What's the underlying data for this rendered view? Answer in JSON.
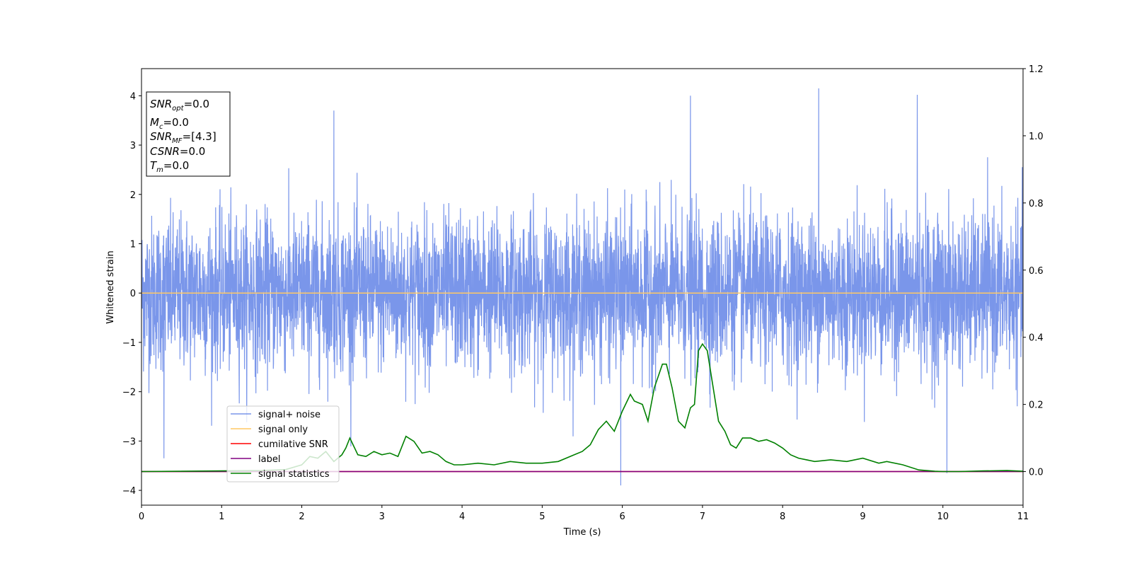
{
  "chart_data": {
    "type": "line",
    "xlabel": "Time (s)",
    "ylabel": "Whitened strain",
    "xlim": [
      0,
      11
    ],
    "ylim": [
      -4.3,
      4.55
    ],
    "y2lim": [
      -0.1,
      1.2
    ],
    "x_ticks": [
      "0",
      "1",
      "2",
      "3",
      "4",
      "5",
      "6",
      "7",
      "8",
      "9",
      "10",
      "11"
    ],
    "y_ticks": [
      "−4",
      "−3",
      "−2",
      "−1",
      "0",
      "1",
      "2",
      "3",
      "4"
    ],
    "y2_ticks": [
      "0.0",
      "0.2",
      "0.4",
      "0.6",
      "0.8",
      "1.0",
      "1.2"
    ],
    "legend_position": "lower-left",
    "info_box": {
      "line1": {
        "main": "SNR",
        "sub": "opt",
        "rest": "=0.0"
      },
      "line2": {
        "main": "M",
        "sub": "c",
        "rest": "=0.0"
      },
      "line3": {
        "main": "SNR",
        "sub": "MF",
        "rest": "=[4.3]"
      },
      "line4": {
        "main": "CSNR",
        "sub": "",
        "rest": "=0.0"
      },
      "line5": {
        "main": "T",
        "sub": "m",
        "rest": "=0.0"
      }
    },
    "series": [
      {
        "name": "signal+ noise",
        "color": "#4169e1",
        "axis": "left",
        "band": {
          "typical_min": -1.7,
          "typical_max": 1.7,
          "peak_max": 4.15,
          "peak_min": -3.9
        },
        "notable_spikes": [
          [
            0.28,
            -3.35
          ],
          [
            2.4,
            3.7
          ],
          [
            5.98,
            -3.9
          ],
          [
            6.85,
            4.0
          ],
          [
            8.45,
            4.15
          ],
          [
            9.68,
            4.02
          ],
          [
            10.05,
            -3.65
          ]
        ]
      },
      {
        "name": "signal only",
        "color": "#ffc864",
        "axis": "left",
        "x": [
          0,
          11
        ],
        "y": [
          0,
          0
        ]
      },
      {
        "name": "cumilative SNR",
        "color": "#ff0000",
        "axis": "right",
        "x": [
          0,
          11
        ],
        "y": [
          0,
          0
        ]
      },
      {
        "name": "label",
        "color": "#800080",
        "axis": "right",
        "x": [
          0,
          11
        ],
        "y": [
          0,
          0
        ]
      },
      {
        "name": "signal statistics",
        "color": "#008000",
        "axis": "right",
        "x": [
          0,
          0.5,
          1.0,
          1.5,
          1.8,
          2.0,
          2.1,
          2.2,
          2.3,
          2.4,
          2.5,
          2.55,
          2.6,
          2.7,
          2.8,
          2.9,
          3.0,
          3.1,
          3.2,
          3.3,
          3.4,
          3.5,
          3.6,
          3.7,
          3.8,
          3.9,
          4.0,
          4.2,
          4.4,
          4.6,
          4.8,
          5.0,
          5.2,
          5.4,
          5.5,
          5.6,
          5.7,
          5.8,
          5.9,
          6.0,
          6.1,
          6.15,
          6.25,
          6.32,
          6.4,
          6.5,
          6.55,
          6.62,
          6.7,
          6.78,
          6.85,
          6.9,
          6.95,
          7.0,
          7.06,
          7.12,
          7.2,
          7.28,
          7.35,
          7.42,
          7.5,
          7.6,
          7.7,
          7.8,
          7.9,
          8.0,
          8.1,
          8.2,
          8.4,
          8.6,
          8.8,
          9.0,
          9.2,
          9.3,
          9.5,
          9.7,
          9.9,
          10.0,
          10.2,
          10.5,
          10.8,
          11.0
        ],
        "y": [
          0.0,
          0.001,
          0.002,
          0.003,
          0.006,
          0.02,
          0.045,
          0.04,
          0.06,
          0.03,
          0.05,
          0.07,
          0.1,
          0.05,
          0.045,
          0.06,
          0.05,
          0.055,
          0.045,
          0.105,
          0.09,
          0.055,
          0.06,
          0.05,
          0.03,
          0.02,
          0.02,
          0.025,
          0.02,
          0.03,
          0.025,
          0.025,
          0.03,
          0.05,
          0.06,
          0.08,
          0.125,
          0.15,
          0.12,
          0.18,
          0.23,
          0.21,
          0.2,
          0.15,
          0.25,
          0.32,
          0.32,
          0.25,
          0.15,
          0.13,
          0.19,
          0.2,
          0.36,
          0.38,
          0.36,
          0.27,
          0.15,
          0.12,
          0.08,
          0.07,
          0.1,
          0.1,
          0.09,
          0.095,
          0.085,
          0.07,
          0.05,
          0.04,
          0.03,
          0.035,
          0.03,
          0.04,
          0.025,
          0.03,
          0.02,
          0.005,
          0.001,
          0.0,
          0.0,
          0.002,
          0.003,
          0.001
        ]
      }
    ]
  }
}
